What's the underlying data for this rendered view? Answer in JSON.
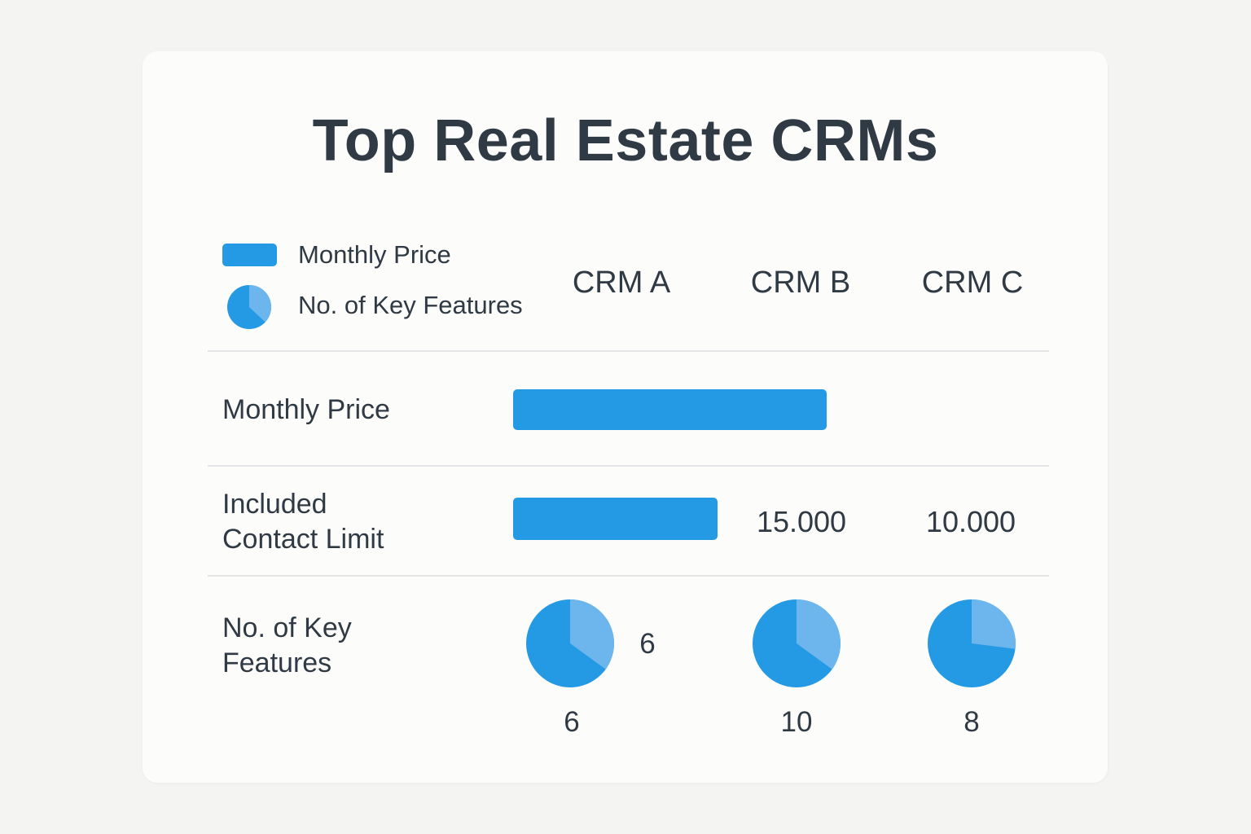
{
  "title": "Top Real Estate CRMs",
  "colors": {
    "primary": "#2499e4",
    "secondary": "#6cb6ed"
  },
  "legend": [
    {
      "label": "Monthly Price",
      "icon": "bar-swatch-icon"
    },
    {
      "label": "No. of Key Features",
      "icon": "pie-swatch-icon"
    }
  ],
  "chart_data": {
    "type": "table",
    "title": "Top Real Estate CRMs",
    "categories": [
      "CRM A",
      "CRM B",
      "CRM C"
    ],
    "rows": [
      {
        "label": "Monthly Price",
        "display": "bar",
        "bars": [
          {
            "span": [
              "CRM A",
              "CRM B"
            ],
            "relative_length": 1.0
          }
        ]
      },
      {
        "label_lines": [
          "Included",
          "Contact Limit"
        ],
        "display": "bar+text",
        "bars": [
          {
            "span": [
              "CRM A"
            ],
            "relative_length": 0.65
          }
        ],
        "values": [
          "",
          "15.000",
          "10.000"
        ]
      },
      {
        "label_lines": [
          "No. of Key",
          "Features"
        ],
        "display": "pie",
        "pie_fractions": [
          0.35,
          0.35,
          0.27
        ],
        "inline_value": "6",
        "values": [
          "6",
          "10",
          "8"
        ]
      }
    ],
    "legend_placement": "top-left"
  }
}
